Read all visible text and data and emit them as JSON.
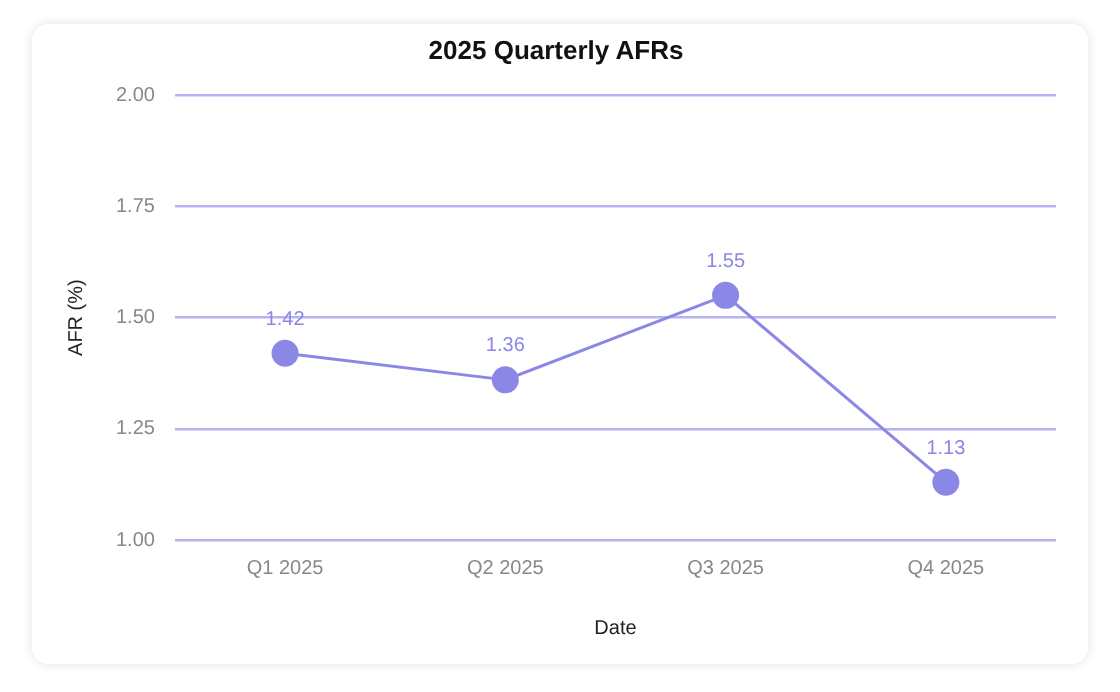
{
  "chart_data": {
    "type": "line",
    "title": "2025 Quarterly AFRs",
    "xlabel": "Date",
    "ylabel": "AFR (%)",
    "categories": [
      "Q1 2025",
      "Q2 2025",
      "Q3 2025",
      "Q4 2025"
    ],
    "series": [
      {
        "color": "#8b87e6",
        "values": [
          1.42,
          1.36,
          1.55,
          1.13
        ]
      }
    ],
    "ylim": [
      1.0,
      2.0
    ],
    "yticks": [
      {
        "value": 1.0,
        "label": "1.00"
      },
      {
        "value": 1.25,
        "label": "1.25"
      },
      {
        "value": 1.5,
        "label": "1.50"
      },
      {
        "value": 1.75,
        "label": "1.75"
      },
      {
        "value": 2.0,
        "label": "2.00"
      }
    ],
    "grid": "y",
    "legend": false,
    "marker": "circle",
    "line_style": "solid",
    "data_labels": true
  }
}
